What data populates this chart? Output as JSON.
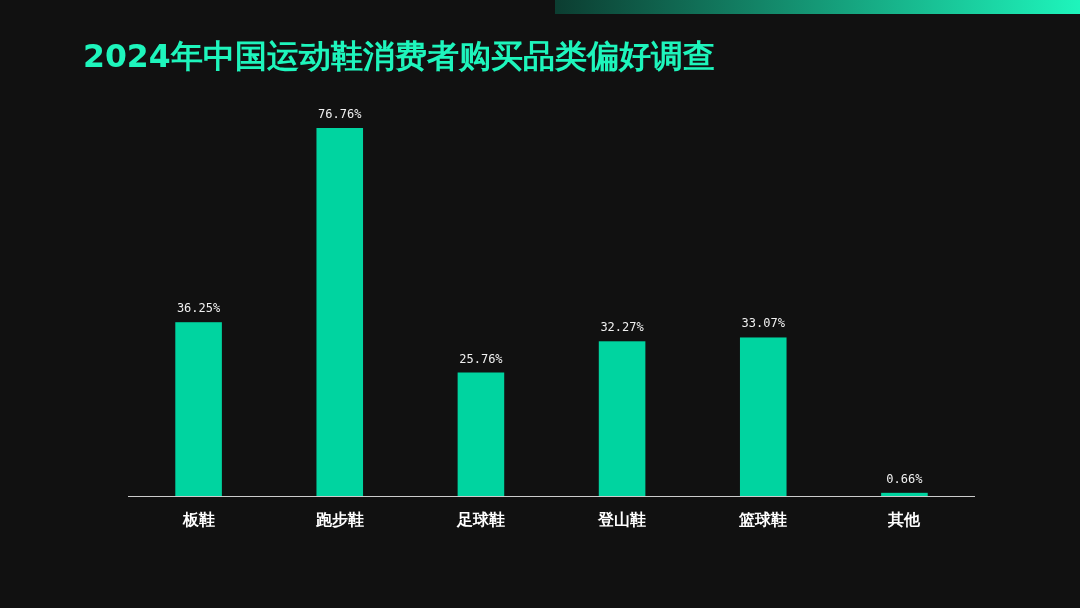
{
  "chart_data": {
    "type": "bar",
    "title": "2024年中国运动鞋消费者购买品类偏好调查",
    "categories": [
      "板鞋",
      "跑步鞋",
      "足球鞋",
      "登山鞋",
      "篮球鞋",
      "其他"
    ],
    "values": [
      36.25,
      76.76,
      25.76,
      32.27,
      33.07,
      0.66
    ],
    "value_labels": [
      "36.25%",
      "76.76%",
      "25.76%",
      "32.27%",
      "33.07%",
      "0.66%"
    ],
    "color": "#00d4a0"
  }
}
